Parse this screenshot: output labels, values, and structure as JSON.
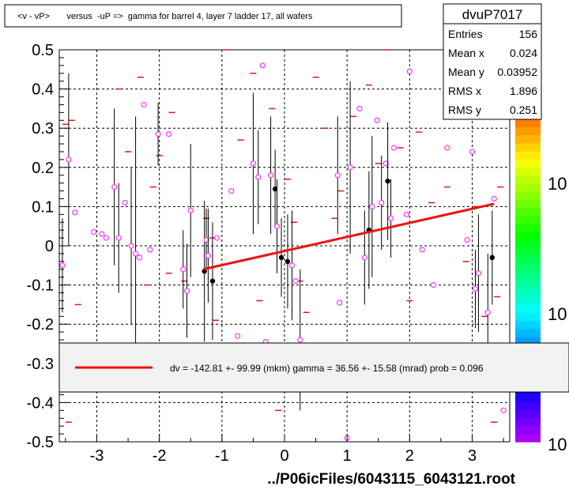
{
  "header": {
    "title": "<v - vP>       versus  -uP =>  gamma for barrel 4, layer 7 ladder 17, all wafers"
  },
  "stats": {
    "name": "dvuP7017",
    "rows": [
      {
        "label": "Entries",
        "value": "156"
      },
      {
        "label": "Mean x",
        "value": "0.024"
      },
      {
        "label": "Mean y",
        "value": "0.03952"
      },
      {
        "label": "RMS x",
        "value": "1.896"
      },
      {
        "label": "RMS y",
        "value": "0.251"
      }
    ]
  },
  "legend": {
    "text": "dv = -142.81 +- 99.99 (mkm) gamma =   36.56 +- 15.58 (mrad) prob = 0.096",
    "color": "#ee1111"
  },
  "footer": {
    "path": "../P06icFiles/6043115_6043121.root"
  },
  "colorbar": {
    "labels": [
      "10",
      "10",
      "10"
    ]
  },
  "chart_data": {
    "type": "scatter",
    "xlim": [
      -3.6,
      3.6
    ],
    "ylim": [
      -0.5,
      0.5
    ],
    "x_ticks": [
      -3,
      -2,
      -1,
      0,
      1,
      2,
      3
    ],
    "x_tick_labels": [
      "-3",
      "-2",
      "-1",
      "0",
      "1",
      "2",
      "3"
    ],
    "y_ticks": [
      -0.5,
      -0.4,
      -0.3,
      -0.2,
      -0.1,
      0,
      0.1,
      0.2,
      0.3,
      0.4,
      0.5
    ],
    "y_tick_labels": [
      "-0.5",
      "-0.4",
      "-0.3",
      "-0.2",
      "-0.1",
      "0",
      "0.1",
      "0.2",
      "0.3",
      "0.4",
      "0.5"
    ],
    "grid": true,
    "fit_line": {
      "x": [
        -1.3,
        3.35
      ],
      "y": [
        -0.06,
        0.107
      ],
      "color": "#ee1111"
    },
    "red_marks": [
      [
        -3.4,
        0.32
      ],
      [
        -3.3,
        -0.15
      ],
      [
        -3.5,
        0.31
      ],
      [
        -3.45,
        -0.45
      ],
      [
        -2.65,
        0.4
      ],
      [
        -2.5,
        0.24
      ],
      [
        -2.3,
        0.43
      ],
      [
        -2.1,
        0.15
      ],
      [
        -2.0,
        0.23
      ],
      [
        -1.85,
        -0.07
      ],
      [
        -1.6,
        -0.09
      ],
      [
        -1.25,
        0.07
      ],
      [
        -1.15,
        0.02
      ],
      [
        -1.1,
        -0.19
      ],
      [
        -0.95,
        0.5
      ],
      [
        -0.7,
        0.27
      ],
      [
        -0.5,
        0.44
      ],
      [
        -0.4,
        -0.14
      ],
      [
        -0.2,
        0.35
      ],
      [
        -0.1,
        -0.42
      ],
      [
        0.05,
        0.17
      ],
      [
        0.15,
        0.06
      ],
      [
        0.25,
        -0.09
      ],
      [
        0.35,
        -0.17
      ],
      [
        0.5,
        0.43
      ],
      [
        0.65,
        0.3
      ],
      [
        0.8,
        0.07
      ],
      [
        0.9,
        0.14
      ],
      [
        1.1,
        0.33
      ],
      [
        1.2,
        -0.29
      ],
      [
        1.35,
        0.41
      ],
      [
        1.5,
        0.21
      ],
      [
        1.65,
        0.5
      ],
      [
        1.85,
        0.25
      ],
      [
        2.0,
        -0.14
      ],
      [
        2.15,
        0.29
      ],
      [
        2.35,
        0.11
      ],
      [
        2.6,
        0.15
      ],
      [
        2.75,
        0.36
      ],
      [
        2.9,
        -0.04
      ],
      [
        3.05,
        0.1
      ],
      [
        3.2,
        -0.18
      ],
      [
        3.35,
        -0.45
      ],
      [
        3.45,
        0.15
      ],
      [
        3.4,
        -0.13
      ],
      [
        -2.75,
        -0.33
      ],
      [
        -2.2,
        -0.1
      ],
      [
        -1.8,
        0.34
      ],
      [
        -0.85,
        -0.32
      ],
      [
        0.45,
        -0.29
      ]
    ],
    "points": [
      {
        "x": -3.45,
        "y": 0.22,
        "err": 0.22,
        "style": "open"
      },
      {
        "x": -3.55,
        "y": -0.05,
        "err": 0.12,
        "style": "open"
      },
      {
        "x": -3.35,
        "y": 0.085,
        "err": 0.0,
        "style": "open"
      },
      {
        "x": -3.05,
        "y": 0.035,
        "err": 0.0,
        "style": "open"
      },
      {
        "x": -2.92,
        "y": 0.03,
        "err": 0.0,
        "style": "open"
      },
      {
        "x": -2.85,
        "y": 0.02,
        "err": 0.0,
        "style": "open"
      },
      {
        "x": -2.72,
        "y": 0.15,
        "err": 0.2,
        "style": "open"
      },
      {
        "x": -2.65,
        "y": 0.02,
        "err": 0.14,
        "style": "open"
      },
      {
        "x": -2.55,
        "y": 0.11,
        "err": 0.0,
        "style": "open"
      },
      {
        "x": -2.45,
        "y": 0.0,
        "err": 0.2,
        "style": "open"
      },
      {
        "x": -2.38,
        "y": -0.02,
        "err": 0.35,
        "style": "open"
      },
      {
        "x": -2.32,
        "y": -0.03,
        "err": 0.0,
        "style": "open"
      },
      {
        "x": -2.25,
        "y": 0.36,
        "err": 0.0,
        "style": "open"
      },
      {
        "x": -2.15,
        "y": -0.01,
        "err": 0.0,
        "style": "open"
      },
      {
        "x": -2.02,
        "y": 0.285,
        "err": 0.08,
        "style": "open"
      },
      {
        "x": -1.85,
        "y": 0.285,
        "err": 0.0,
        "style": "open"
      },
      {
        "x": -1.62,
        "y": -0.06,
        "err": 0.1,
        "style": "open"
      },
      {
        "x": -1.56,
        "y": -0.115,
        "err": 0.12,
        "style": "open"
      },
      {
        "x": -1.5,
        "y": 0.09,
        "err": 0.17,
        "style": "open"
      },
      {
        "x": -1.28,
        "y": -0.065,
        "err": 0.18,
        "style": "closed"
      },
      {
        "x": -1.25,
        "y": 0.015,
        "err": 0.08,
        "style": "open"
      },
      {
        "x": -1.22,
        "y": -0.025,
        "err": 0.12,
        "style": "open"
      },
      {
        "x": -1.15,
        "y": -0.09,
        "err": 0.15,
        "style": "closed"
      },
      {
        "x": -1.08,
        "y": 0.02,
        "err": 0.0,
        "style": "open"
      },
      {
        "x": -0.85,
        "y": 0.14,
        "err": 0.0,
        "style": "open"
      },
      {
        "x": -0.75,
        "y": -0.23,
        "err": 0.0,
        "style": "open"
      },
      {
        "x": -0.5,
        "y": 0.21,
        "err": 0.18,
        "style": "open"
      },
      {
        "x": -0.42,
        "y": 0.175,
        "err": 0.12,
        "style": "open"
      },
      {
        "x": -0.35,
        "y": 0.46,
        "err": 0.0,
        "style": "open"
      },
      {
        "x": -0.3,
        "y": -0.245,
        "err": 0.0,
        "style": "open"
      },
      {
        "x": -0.22,
        "y": 0.18,
        "err": 0.15,
        "style": "open"
      },
      {
        "x": -0.15,
        "y": 0.145,
        "err": 0.1,
        "style": "closed"
      },
      {
        "x": -0.12,
        "y": 0.05,
        "err": 0.12,
        "style": "open"
      },
      {
        "x": -0.05,
        "y": -0.03,
        "err": 0.1,
        "style": "closed"
      },
      {
        "x": 0.05,
        "y": -0.04,
        "err": 0.12,
        "style": "closed"
      },
      {
        "x": 0.12,
        "y": -0.05,
        "err": 0.14,
        "style": "open"
      },
      {
        "x": 0.18,
        "y": -0.09,
        "err": 0.0,
        "style": "open"
      },
      {
        "x": 0.25,
        "y": -0.24,
        "err": 0.18,
        "style": "open"
      },
      {
        "x": 0.85,
        "y": 0.18,
        "err": 0.15,
        "style": "open"
      },
      {
        "x": 0.88,
        "y": -0.145,
        "err": 0.0,
        "style": "open"
      },
      {
        "x": 1.05,
        "y": 0.2,
        "err": 0.22,
        "style": "open"
      },
      {
        "x": 1.2,
        "y": 0.35,
        "err": 0.0,
        "style": "open"
      },
      {
        "x": 1.28,
        "y": -0.03,
        "err": 0.12,
        "style": "open"
      },
      {
        "x": 1.35,
        "y": 0.04,
        "err": 0.15,
        "style": "closed"
      },
      {
        "x": 1.4,
        "y": 0.1,
        "err": 0.18,
        "style": "open"
      },
      {
        "x": 1.48,
        "y": 0.32,
        "err": 0.0,
        "style": "open"
      },
      {
        "x": 1.55,
        "y": 0.11,
        "err": 0.12,
        "style": "open"
      },
      {
        "x": 1.62,
        "y": 0.21,
        "err": 0.0,
        "style": "open"
      },
      {
        "x": 1.65,
        "y": 0.165,
        "err": 0.15,
        "style": "closed"
      },
      {
        "x": 1.7,
        "y": 0.07,
        "err": 0.1,
        "style": "open"
      },
      {
        "x": 1.75,
        "y": 0.25,
        "err": 0.0,
        "style": "open"
      },
      {
        "x": 1.95,
        "y": 0.08,
        "err": 0.0,
        "style": "open"
      },
      {
        "x": 2.0,
        "y": 0.445,
        "err": 0.0,
        "style": "open"
      },
      {
        "x": 2.2,
        "y": -0.01,
        "err": 0.0,
        "style": "open"
      },
      {
        "x": 2.38,
        "y": -0.1,
        "err": 0.0,
        "style": "open"
      },
      {
        "x": 2.6,
        "y": 0.25,
        "err": 0.0,
        "style": "open"
      },
      {
        "x": 2.92,
        "y": 0.015,
        "err": 0.0,
        "style": "open"
      },
      {
        "x": 3.0,
        "y": 0.24,
        "err": 0.0,
        "style": "open"
      },
      {
        "x": 3.05,
        "y": -0.11,
        "err": 0.1,
        "style": "open"
      },
      {
        "x": 3.1,
        "y": -0.07,
        "err": 0.15,
        "style": "open"
      },
      {
        "x": 3.25,
        "y": -0.17,
        "err": 0.15,
        "style": "open"
      },
      {
        "x": 3.32,
        "y": -0.03,
        "err": 0.12,
        "style": "closed"
      },
      {
        "x": 3.35,
        "y": 0.12,
        "err": 0.0,
        "style": "open"
      },
      {
        "x": 3.5,
        "y": -0.42,
        "err": 0.0,
        "style": "open"
      },
      {
        "x": 1.0,
        "y": -0.49,
        "err": 0.0,
        "style": "open"
      }
    ]
  }
}
